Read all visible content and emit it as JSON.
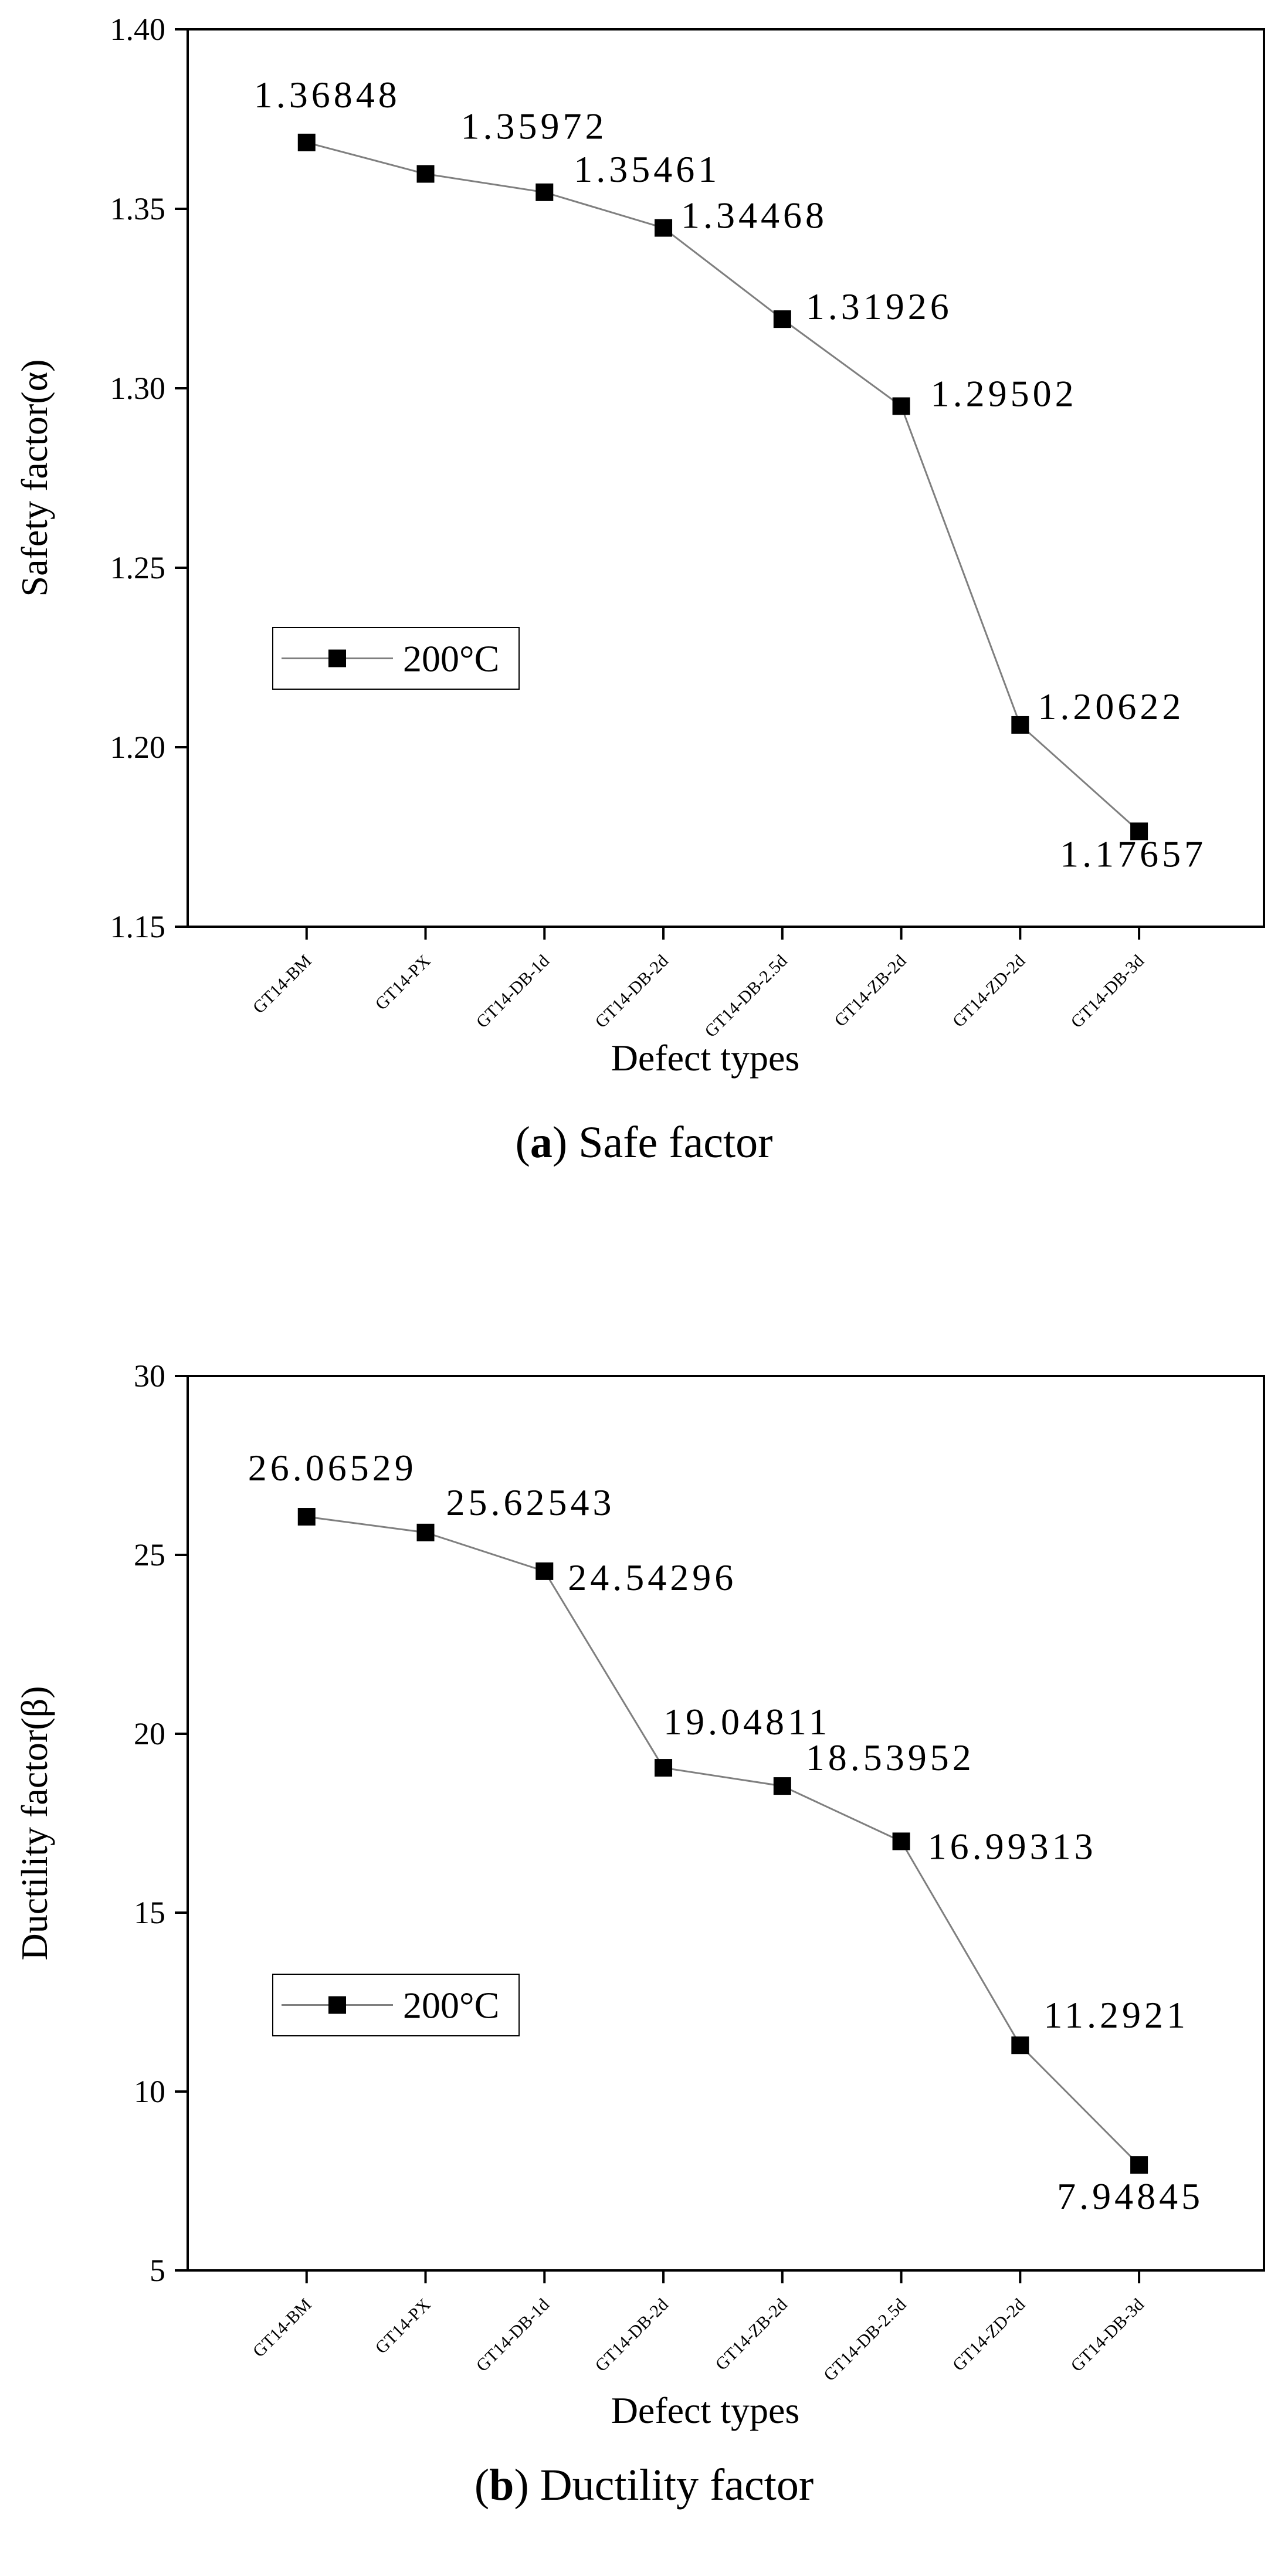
{
  "chart_data": [
    {
      "type": "line",
      "caption_letter": "a",
      "caption_text": " Safe factor",
      "ylabel": "Safety factor(α)",
      "xlabel": "Defect types",
      "ylim": [
        1.15,
        1.4
      ],
      "yticks": [
        "1.15",
        "1.20",
        "1.25",
        "1.30",
        "1.35",
        "1.40"
      ],
      "categories": [
        "GT14-BM",
        "GT14-PX",
        "GT14-DB-1d",
        "GT14-DB-2d",
        "GT14-DB-2.5d",
        "GT14-ZB-2d",
        "GT14-ZD-2d",
        "GT14-DB-3d"
      ],
      "series": [
        {
          "name": "200°C",
          "values": [
            1.36848,
            1.35972,
            1.35461,
            1.34468,
            1.31926,
            1.29502,
            1.20622,
            1.17657
          ],
          "labels": [
            "1.36848",
            "1.35972",
            "1.35461",
            "1.34468",
            "1.31926",
            "1.29502",
            "1.20622",
            "1.17657"
          ]
        }
      ],
      "legend_position": "middle-left"
    },
    {
      "type": "line",
      "caption_letter": "b",
      "caption_text": " Ductility factor",
      "ylabel": "Ductility factor(β)",
      "xlabel": "Defect types",
      "ylim": [
        5,
        30
      ],
      "yticks": [
        "5",
        "10",
        "15",
        "20",
        "25",
        "30"
      ],
      "categories": [
        "GT14-BM",
        "GT14-PX",
        "GT14-DB-1d",
        "GT14-DB-2d",
        "GT14-ZB-2d",
        "GT14-DB-2.5d",
        "GT14-ZD-2d",
        "GT14-DB-3d"
      ],
      "series": [
        {
          "name": "200°C",
          "values": [
            26.06529,
            25.62543,
            24.54296,
            19.04811,
            18.53952,
            16.99313,
            11.2921,
            7.94845
          ],
          "labels": [
            "26.06529",
            "25.62543",
            "24.54296",
            "19.04811",
            "18.53952",
            "16.99313",
            "11.2921",
            "7.94845"
          ]
        }
      ],
      "legend_position": "middle-left"
    }
  ]
}
